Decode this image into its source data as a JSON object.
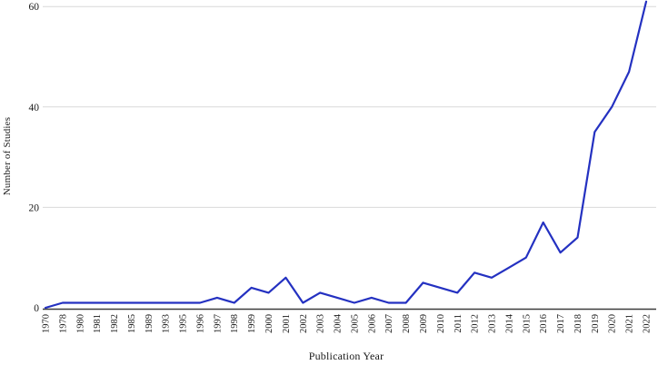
{
  "chart_data": {
    "type": "line",
    "title": "",
    "xlabel": "Publication Year",
    "ylabel": "Number of Studies",
    "categories": [
      "1970",
      "1978",
      "1980",
      "1981",
      "1982",
      "1985",
      "1989",
      "1993",
      "1995",
      "1996",
      "1997",
      "1998",
      "1999",
      "2000",
      "2001",
      "2002",
      "2003",
      "2004",
      "2005",
      "2006",
      "2007",
      "2008",
      "2009",
      "2010",
      "2011",
      "2012",
      "2013",
      "2014",
      "2015",
      "2016",
      "2017",
      "2018",
      "2019",
      "2020",
      "2021",
      "2022"
    ],
    "values": [
      0,
      1,
      1,
      1,
      1,
      1,
      1,
      1,
      1,
      1,
      2,
      1,
      4,
      3,
      6,
      1,
      3,
      2,
      1,
      2,
      1,
      1,
      5,
      4,
      3,
      7,
      6,
      8,
      10,
      17,
      11,
      14,
      35,
      40,
      47,
      61
    ],
    "yticks": [
      0,
      20,
      40,
      60
    ],
    "ylim": [
      0,
      61.5
    ],
    "grid": "horizontal",
    "legend": "none",
    "line_color": "#2431c1",
    "grid_color": "#d9d9d9",
    "axis_color": "#3c3c3c",
    "text_color": "#1a1a1a"
  }
}
